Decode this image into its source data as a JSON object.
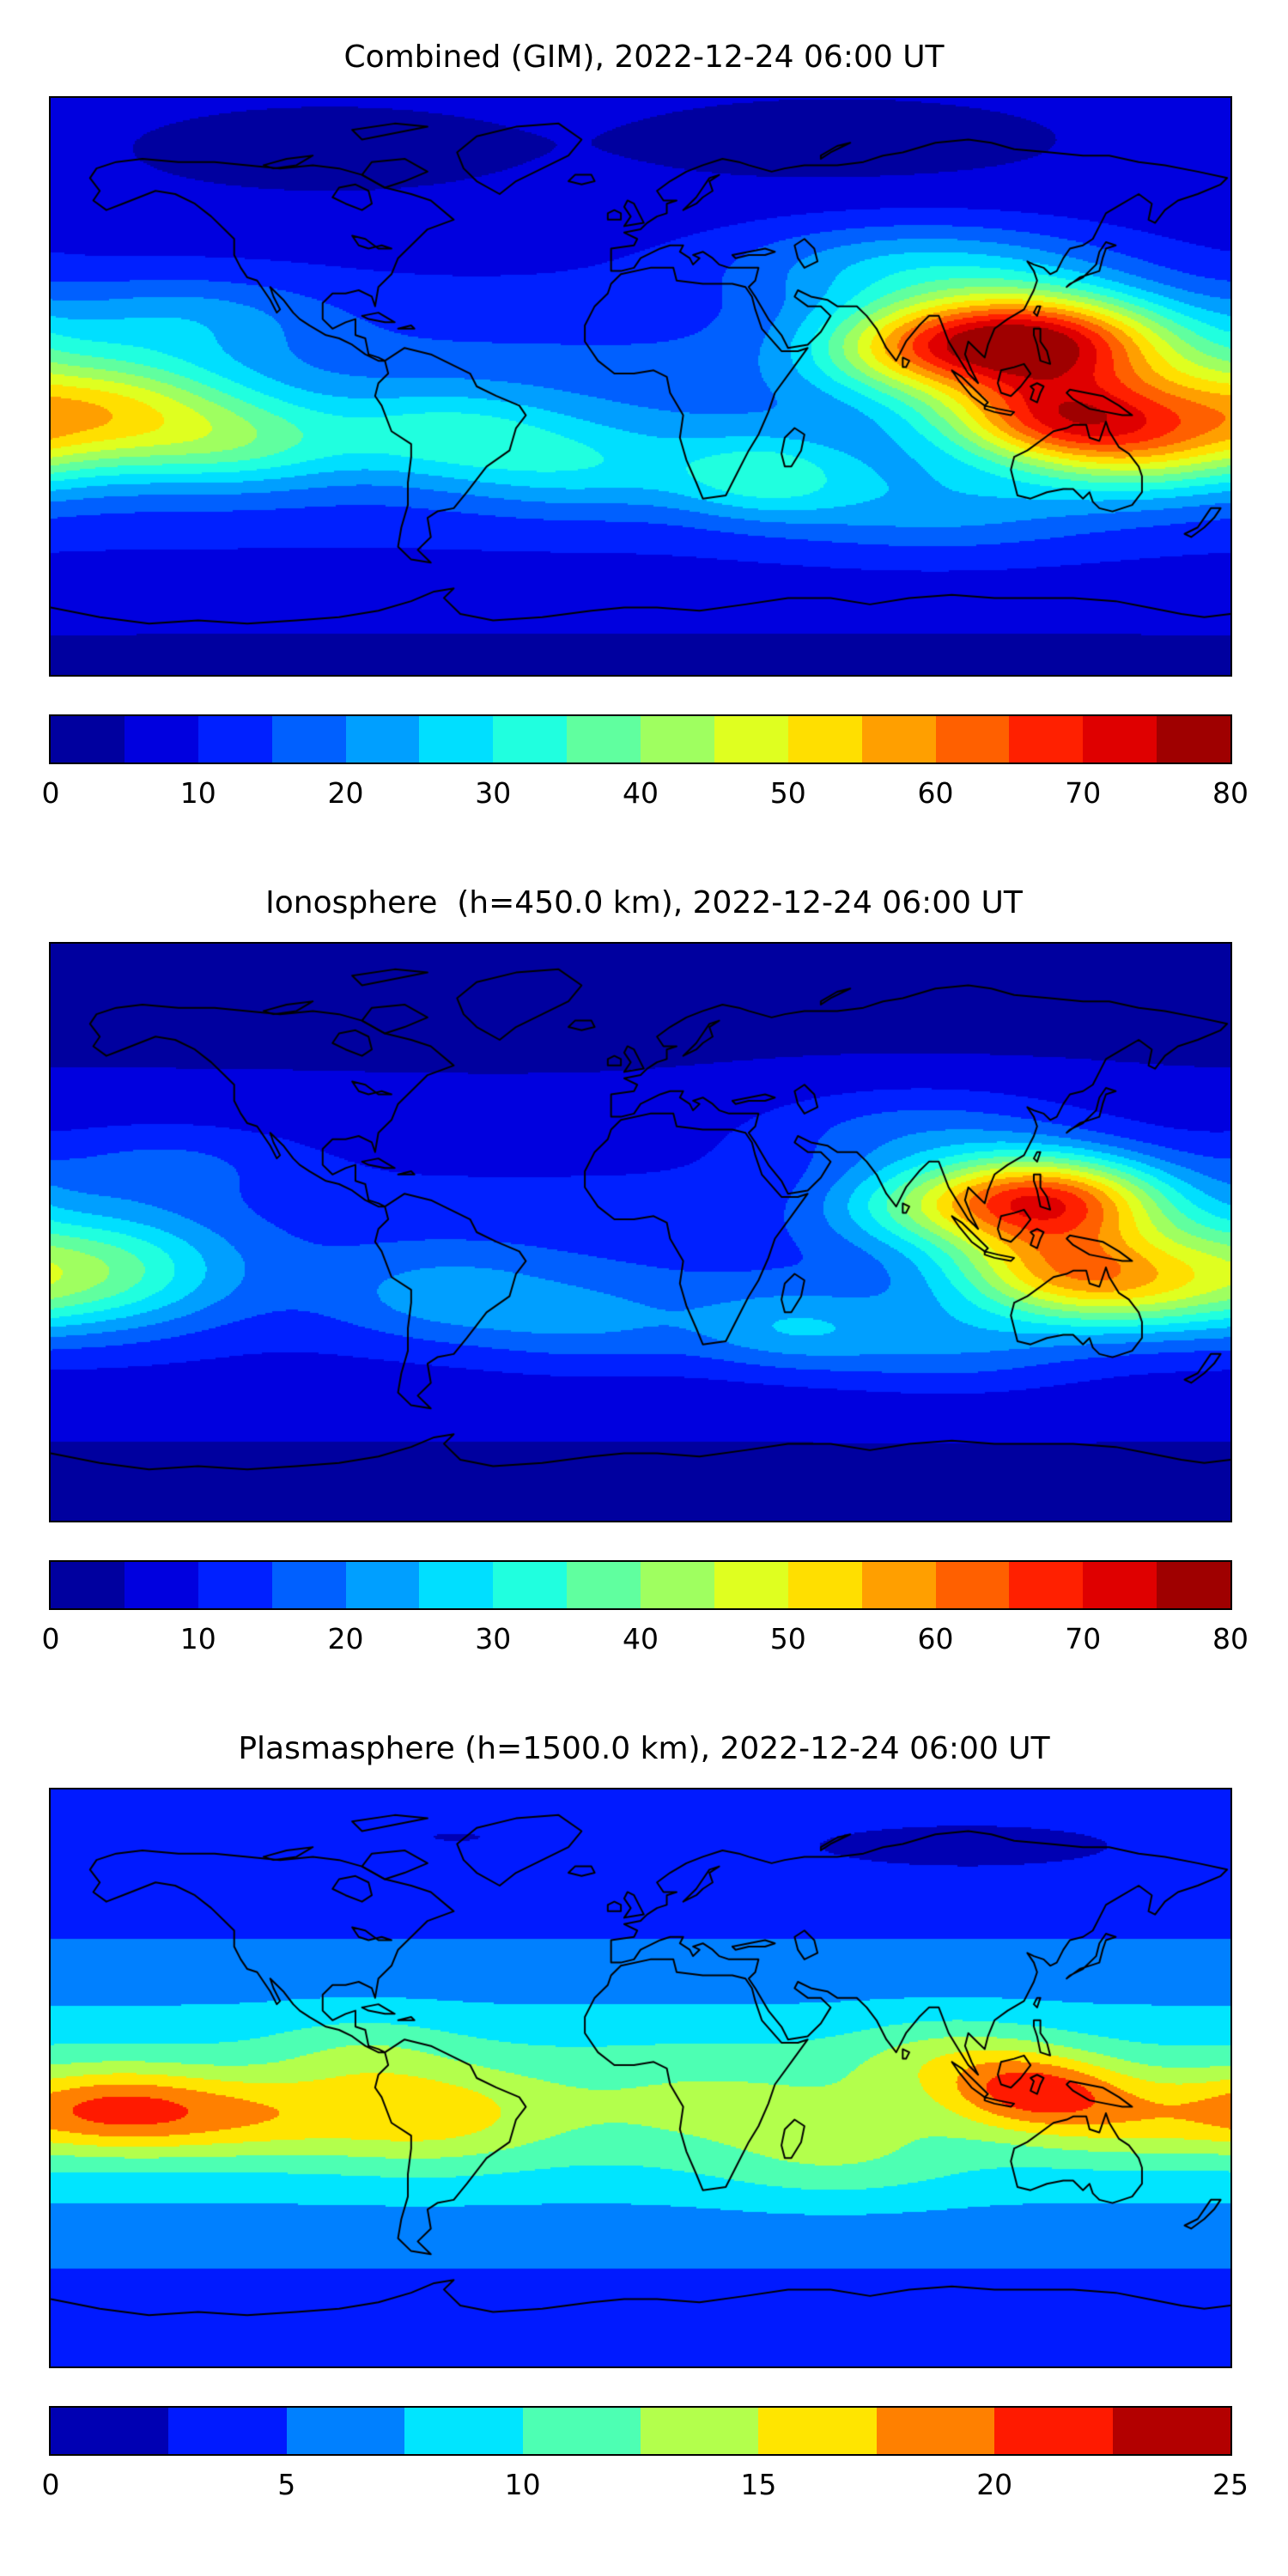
{
  "figure": {
    "background_color": "#ffffff",
    "colormap_name": "jet",
    "panel_count": 3
  },
  "chart_data": [
    {
      "type": "heatmap",
      "title": "Combined (GIM), 2022-12-24 06:00 UT",
      "projection": "equirectangular",
      "lon_range": [
        -180,
        180
      ],
      "lat_range": [
        -90,
        90
      ],
      "colormap": "jet",
      "grid": false,
      "legend_position": "colorbar-below",
      "levels": {
        "min": 0,
        "max": 80,
        "step": 5,
        "n_bands": 16
      },
      "colorbar_ticks": [
        0,
        10,
        20,
        30,
        40,
        50,
        60,
        70,
        80
      ],
      "peak_value_estimate": 78,
      "peak_location": {
        "lon": 118,
        "lat": 14
      },
      "field": {
        "background": {
          "base": 5.5,
          "equator_amp": 12,
          "equator_lat": -8,
          "lat_sigma": 30
        },
        "hotspots": [
          {
            "lon": 118,
            "lat": 14,
            "amp": 62,
            "slon": 30,
            "slat": 11
          },
          {
            "lon": 78,
            "lat": 12,
            "amp": 18,
            "slon": 22,
            "slat": 10
          },
          {
            "lon": 128,
            "lat": -10,
            "amp": 42,
            "slon": 26,
            "slat": 10
          },
          {
            "lon": 152,
            "lat": -22,
            "amp": 16,
            "slon": 24,
            "slat": 10
          },
          {
            "lon": -168,
            "lat": -8,
            "amp": 34,
            "slon": 32,
            "slat": 13
          },
          {
            "lon": -140,
            "lat": 22,
            "amp": 10,
            "slon": 30,
            "slat": 9
          },
          {
            "lon": -120,
            "lat": -18,
            "amp": 14,
            "slon": 24,
            "slat": 10
          },
          {
            "lon": -60,
            "lat": -15,
            "amp": 14,
            "slon": 26,
            "slat": 10
          },
          {
            "lon": -18,
            "lat": -25,
            "amp": 12,
            "slon": 28,
            "slat": 10
          },
          {
            "lon": 38,
            "lat": -28,
            "amp": 16,
            "slon": 20,
            "slat": 9
          },
          {
            "lon": 90,
            "lat": -38,
            "amp": 10,
            "slon": 36,
            "slat": 10
          },
          {
            "lon": 85,
            "lat": 38,
            "amp": 16,
            "slon": 40,
            "slat": 10
          },
          {
            "lon": -95,
            "lat": 72,
            "amp": -3.5,
            "slon": 35,
            "slat": 8
          },
          {
            "lon": 60,
            "lat": 75,
            "amp": -3,
            "slon": 40,
            "slat": 8
          },
          {
            "lon": 0,
            "lat": -88,
            "amp": -2.5,
            "slon": 400,
            "slat": 10
          }
        ]
      }
    },
    {
      "type": "heatmap",
      "title": "Ionosphere  (h=450.0 km), 2022-12-24 06:00 UT",
      "projection": "equirectangular",
      "lon_range": [
        -180,
        180
      ],
      "lat_range": [
        -90,
        90
      ],
      "colormap": "jet",
      "grid": false,
      "legend_position": "colorbar-below",
      "levels": {
        "min": 0,
        "max": 80,
        "step": 5,
        "n_bands": 16
      },
      "colorbar_ticks": [
        0,
        10,
        20,
        30,
        40,
        50,
        60,
        70,
        80
      ],
      "peak_value_estimate": 67,
      "peak_location": {
        "lon": 122,
        "lat": 10
      },
      "field": {
        "background": {
          "base": 4,
          "equator_amp": 9,
          "equator_lat": -8,
          "lat_sigma": 28
        },
        "hotspots": [
          {
            "lon": 122,
            "lat": 10,
            "amp": 55,
            "slon": 26,
            "slat": 10
          },
          {
            "lon": 80,
            "lat": 8,
            "amp": 12,
            "slon": 20,
            "slat": 9
          },
          {
            "lon": 130,
            "lat": -12,
            "amp": 36,
            "slon": 26,
            "slat": 10
          },
          {
            "lon": 150,
            "lat": -22,
            "amp": 10,
            "slon": 24,
            "slat": 9
          },
          {
            "lon": -170,
            "lat": -12,
            "amp": 26,
            "slon": 30,
            "slat": 13
          },
          {
            "lon": -60,
            "lat": -20,
            "amp": 10,
            "slon": 25,
            "slat": 10
          },
          {
            "lon": -15,
            "lat": -28,
            "amp": 9,
            "slon": 26,
            "slat": 10
          },
          {
            "lon": 45,
            "lat": -30,
            "amp": 12,
            "slon": 22,
            "slat": 9
          },
          {
            "lon": 95,
            "lat": -35,
            "amp": 10,
            "slon": 30,
            "slat": 10
          },
          {
            "lon": -145,
            "lat": 22,
            "amp": 7,
            "slon": 28,
            "slat": 9
          },
          {
            "lon": 85,
            "lat": 32,
            "amp": 10,
            "slon": 35,
            "slat": 10
          },
          {
            "lon": -40,
            "lat": 70,
            "amp": -2.5,
            "slon": 35,
            "slat": 8
          },
          {
            "lon": 90,
            "lat": 72,
            "amp": -2,
            "slon": 45,
            "slat": 8
          },
          {
            "lon": 0,
            "lat": -88,
            "amp": -1.5,
            "slon": 400,
            "slat": 10
          }
        ]
      }
    },
    {
      "type": "heatmap",
      "title": "Plasmasphere (h=1500.0 km), 2022-12-24 06:00 UT",
      "projection": "equirectangular",
      "lon_range": [
        -180,
        180
      ],
      "lat_range": [
        -90,
        90
      ],
      "colormap": "jet",
      "grid": false,
      "legend_position": "colorbar-below",
      "levels": {
        "min": 0,
        "max": 25,
        "step": 2.5,
        "n_bands": 10
      },
      "colorbar_ticks": [
        0,
        5,
        10,
        15,
        20,
        25
      ],
      "peak_value_estimate": 20,
      "peak_location": {
        "lon": -160,
        "lat": -10
      },
      "field": {
        "background": {
          "base": 4,
          "equator_amp": 7,
          "equator_lat": -8,
          "lat_sigma": 26
        },
        "hotspots": [
          {
            "lon": -160,
            "lat": -10,
            "amp": 8.5,
            "slon": 22,
            "slat": 9
          },
          {
            "lon": -120,
            "lat": -12,
            "amp": 5,
            "slon": 24,
            "slat": 9
          },
          {
            "lon": -65,
            "lat": -12,
            "amp": 5.5,
            "slon": 26,
            "slat": 11
          },
          {
            "lon": -85,
            "lat": 8,
            "amp": 2.5,
            "slon": 20,
            "slat": 9
          },
          {
            "lon": 120,
            "lat": -4,
            "amp": 8.8,
            "slon": 18,
            "slat": 8
          },
          {
            "lon": 95,
            "lat": 6,
            "amp": 4,
            "slon": 22,
            "slat": 9
          },
          {
            "lon": 150,
            "lat": -12,
            "amp": 5,
            "slon": 24,
            "slat": 9
          },
          {
            "lon": 20,
            "lat": -8,
            "amp": 2,
            "slon": 30,
            "slat": 12
          },
          {
            "lon": 60,
            "lat": -25,
            "amp": 3,
            "slon": 26,
            "slat": 10
          },
          {
            "lon": 100,
            "lat": 72,
            "amp": -2,
            "slon": 60,
            "slat": 9
          },
          {
            "lon": -60,
            "lat": 75,
            "amp": -1.5,
            "slon": 45,
            "slat": 8
          }
        ]
      }
    }
  ]
}
